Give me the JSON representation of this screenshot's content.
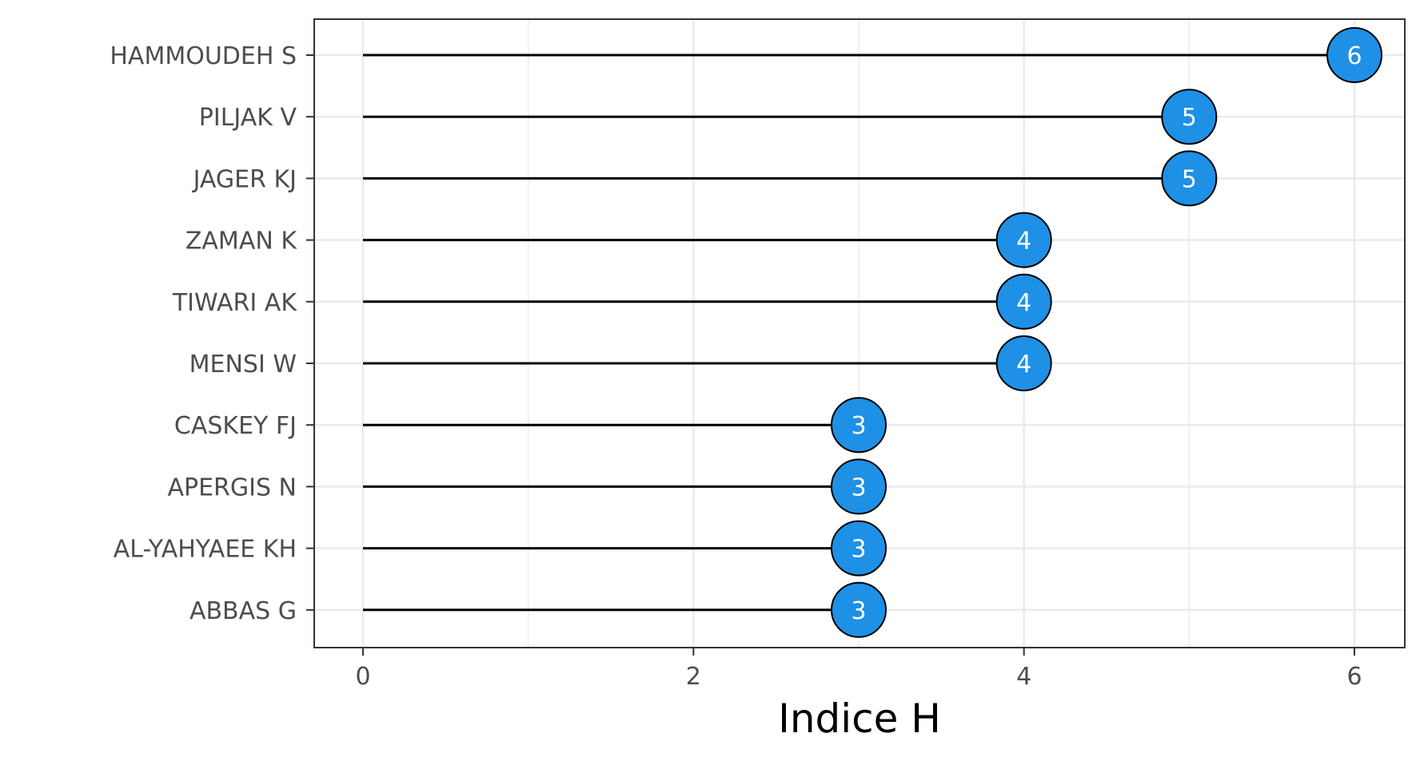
{
  "chart_data": {
    "type": "lollipop",
    "title": "",
    "xlabel": "Indice H",
    "ylabel": "",
    "xlim": [
      -0.3,
      6.3
    ],
    "x_ticks": [
      0,
      2,
      4,
      6
    ],
    "x_tick_labels": [
      "0",
      "2",
      "4",
      "6"
    ],
    "grid": true,
    "legend": "none",
    "categories": [
      "HAMMOUDEH S",
      "PILJAK V",
      "JAGER KJ",
      "ZAMAN K",
      "TIWARI AK",
      "MENSI W",
      "CASKEY FJ",
      "APERGIS N",
      "AL-YAHYAEE KH",
      "ABBAS G"
    ],
    "values": [
      6,
      5,
      5,
      4,
      4,
      4,
      3,
      3,
      3,
      3
    ],
    "value_labels": [
      "6",
      "5",
      "5",
      "4",
      "4",
      "4",
      "3",
      "3",
      "3",
      "3"
    ],
    "colors": {
      "point_fill": "#1e90e6",
      "point_stroke": "#000000",
      "stem": "#000000",
      "grid": "#ebebeb",
      "panel_border": "#333333",
      "tick_text": "#4d4d4d"
    }
  }
}
